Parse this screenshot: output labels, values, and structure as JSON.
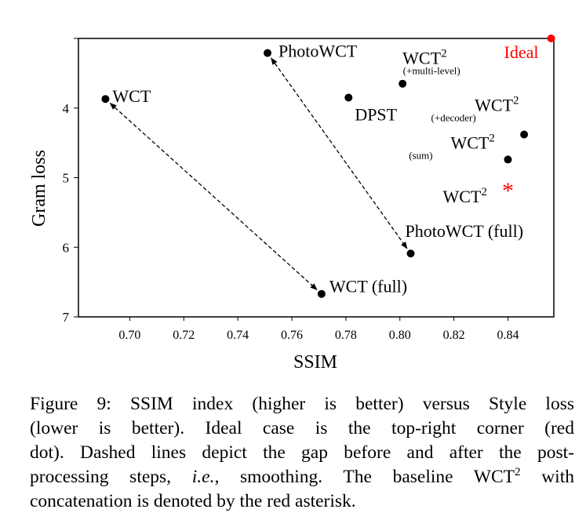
{
  "chart_data": {
    "type": "scatter",
    "xlabel": "SSIM",
    "ylabel": "Gram loss",
    "xlim": [
      0.681,
      0.857
    ],
    "ylim": [
      3,
      7
    ],
    "y_inverted": true,
    "grid": false,
    "x_ticks": [
      "0.70",
      "0.72",
      "0.74",
      "0.76",
      "0.78",
      "0.80",
      "0.82",
      "0.84"
    ],
    "y_ticks": [
      "4",
      "5",
      "6",
      "7"
    ],
    "points": [
      {
        "label": "Ideal",
        "sup": "",
        "sub": "",
        "x": 0.856,
        "y": 3.0,
        "marker": "dot",
        "color": "#ff0000"
      },
      {
        "label": "PhotoWCT",
        "sup": "",
        "sub": "",
        "x": 0.751,
        "y": 3.21,
        "marker": "dot",
        "color": "#000000"
      },
      {
        "label": "WCT",
        "sup": "",
        "sub": "",
        "x": 0.691,
        "y": 3.87,
        "marker": "dot",
        "color": "#000000"
      },
      {
        "label": "DPST",
        "sup": "",
        "sub": "",
        "x": 0.781,
        "y": 3.85,
        "marker": "dot",
        "color": "#000000"
      },
      {
        "label": "WCT",
        "sup": "2",
        "sub": "(+multi-level)",
        "x": 0.801,
        "y": 3.65,
        "marker": "dot",
        "color": "#000000"
      },
      {
        "label": "WCT",
        "sup": "2",
        "sub": "(+decoder)",
        "x": 0.846,
        "y": 4.38,
        "marker": "dot",
        "color": "#000000"
      },
      {
        "label": "WCT",
        "sup": "2",
        "sub": "(sum)",
        "x": 0.84,
        "y": 4.74,
        "marker": "dot",
        "color": "#000000"
      },
      {
        "label": "WCT",
        "sup": "2",
        "sub": "",
        "x": 0.84,
        "y": 5.15,
        "marker": "asterisk",
        "color": "#ff0000"
      },
      {
        "label": "PhotoWCT (full)",
        "sup": "",
        "sub": "",
        "x": 0.804,
        "y": 6.09,
        "marker": "dot",
        "color": "#000000"
      },
      {
        "label": "WCT (full)",
        "sup": "",
        "sub": "",
        "x": 0.771,
        "y": 6.67,
        "marker": "dot",
        "color": "#000000"
      }
    ],
    "arrows": [
      {
        "from": "WCT",
        "to": "WCT (full)",
        "style": "dashed",
        "heads": "both"
      },
      {
        "from": "PhotoWCT",
        "to": "PhotoWCT (full)",
        "style": "dashed",
        "heads": "both"
      }
    ]
  },
  "caption": {
    "l1": "Figure 9: SSIM index (higher is better) versus Style loss",
    "l2": "(lower is better). Ideal case is the top-right corner (red",
    "l3": "dot). Dashed lines depict the gap before and after the post-",
    "l4a": "processing steps, ",
    "l4b": "i.e.",
    "l4c": ", smoothing. The baseline WCT",
    "l4sup": "2",
    "l4d": " with",
    "l5": "concatenation is denoted by the red asterisk."
  }
}
